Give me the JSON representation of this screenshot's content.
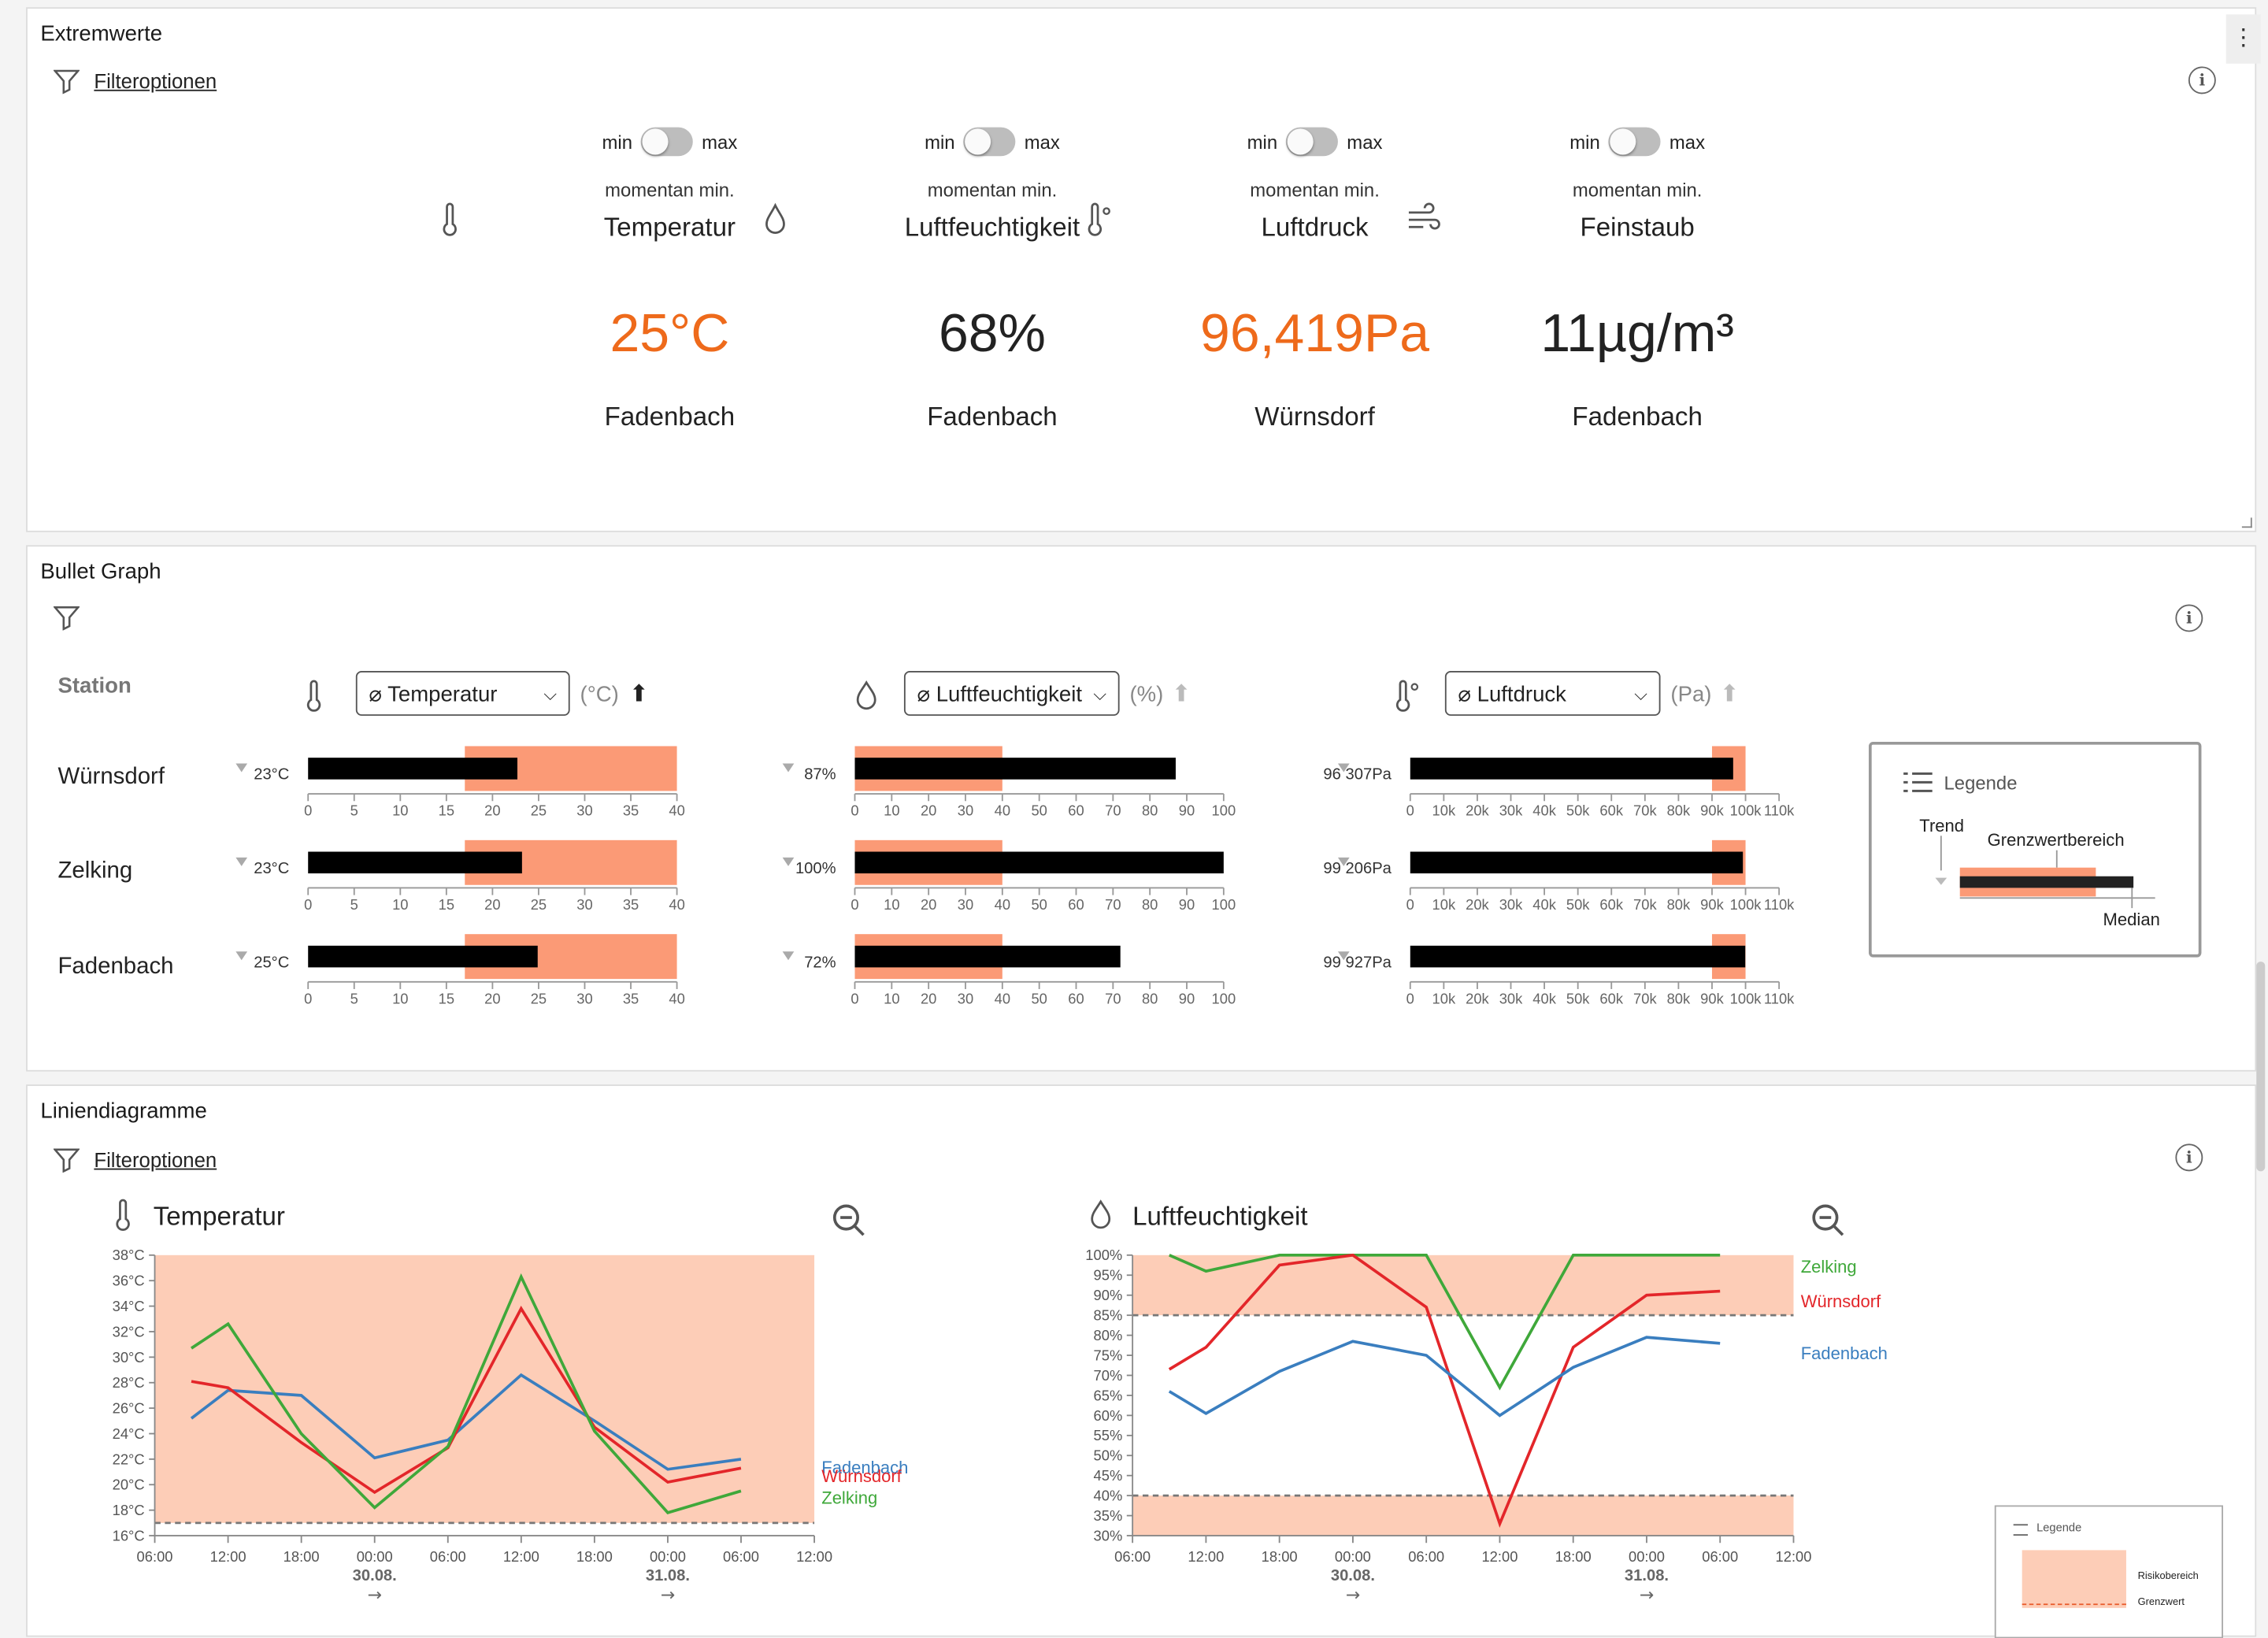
{
  "extremwerte": {
    "title": "Extremwerte",
    "filter_label": "Filteroptionen",
    "toggle_min": "min",
    "toggle_max": "max",
    "momentan": "momentan min.",
    "cards": [
      {
        "metric": "Temperatur",
        "value": "25°C",
        "station": "Fadenbach",
        "icon": "thermometer-icon",
        "highlight": true
      },
      {
        "metric": "Luftfeuchtigkeit",
        "value": "68%",
        "station": "Fadenbach",
        "icon": "droplet-icon",
        "highlight": false
      },
      {
        "metric": "Luftdruck",
        "value": "96,419Pa",
        "station": "Würnsdorf",
        "icon": "pressure-thermometer-icon",
        "highlight": true
      },
      {
        "metric": "Feinstaub",
        "value": "11µg/m³",
        "station": "Fadenbach",
        "icon": "wind-icon",
        "highlight": false
      }
    ]
  },
  "bullet": {
    "title": "Bullet Graph",
    "station_header": "Station",
    "selects": [
      {
        "label": "⌀ Temperatur",
        "unit": "(°C)"
      },
      {
        "label": "⌀ Luftfeuchtigkeit",
        "unit": "(%)"
      },
      {
        "label": "⌀ Luftdruck",
        "unit": "(Pa)"
      }
    ],
    "stations": [
      "Würnsdorf",
      "Zelking",
      "Fadenbach"
    ],
    "graphs": [
      {
        "ticks": [
          "0",
          "5",
          "10",
          "15",
          "20",
          "25",
          "30",
          "35",
          "40"
        ],
        "min": 0,
        "max": 40,
        "range": [
          17,
          40
        ],
        "labels": [
          "23°C",
          "23°C",
          "25°C"
        ],
        "values": [
          22.7,
          23.2,
          24.9
        ]
      },
      {
        "ticks": [
          "0",
          "10",
          "20",
          "30",
          "40",
          "50",
          "60",
          "70",
          "80",
          "90",
          "100"
        ],
        "min": 0,
        "max": 100,
        "range": [
          0,
          40
        ],
        "labels": [
          "87%",
          "100%",
          "72%"
        ],
        "values": [
          87,
          100,
          72
        ]
      },
      {
        "ticks": [
          "0",
          "10k",
          "20k",
          "30k",
          "40k",
          "50k",
          "60k",
          "70k",
          "80k",
          "90k",
          "100k",
          "110k"
        ],
        "min": 0,
        "max": 110000,
        "range": [
          90000,
          100000
        ],
        "labels": [
          "96 307Pa",
          "99 206Pa",
          "99 927Pa"
        ],
        "values": [
          96307,
          99206,
          99927
        ]
      }
    ],
    "legend": {
      "title": "Legende",
      "trend": "Trend",
      "range": "Grenzwertbereich",
      "median": "Median"
    }
  },
  "linien": {
    "title": "Liniendiagramme",
    "filter_label": "Filteroptionen"
  },
  "chart_data": [
    {
      "type": "line",
      "title": "Temperatur",
      "x": [
        "30.08. 09:00",
        "30.08. 12:00",
        "30.08. 18:00",
        "31.08. 00:00",
        "31.08. 06:00",
        "31.08. 12:00",
        "31.08. 18:00",
        "01.09. 00:00",
        "01.09. 06:00"
      ],
      "x_ticks": [
        "06:00",
        "12:00",
        "18:00",
        "00:00",
        "06:00",
        "12:00",
        "18:00",
        "00:00",
        "06:00",
        "12:00"
      ],
      "dates": [
        "30.08.",
        "31.08."
      ],
      "y_ticks": [
        "16°C",
        "18°C",
        "20°C",
        "22°C",
        "24°C",
        "26°C",
        "28°C",
        "30°C",
        "32°C",
        "34°C",
        "36°C",
        "38°C"
      ],
      "ylim": [
        16,
        38
      ],
      "threshold": 17,
      "risk_band": [
        17,
        38
      ],
      "series": [
        {
          "name": "Fadenbach",
          "color": "#3a7ebf",
          "values": [
            25.2,
            27.4,
            27.0,
            22.1,
            23.5,
            28.6,
            25.0,
            21.2,
            22.0
          ]
        },
        {
          "name": "Würnsdorf",
          "color": "#e3262a",
          "values": [
            28.1,
            27.6,
            23.3,
            19.4,
            22.9,
            33.8,
            24.5,
            20.2,
            21.3
          ]
        },
        {
          "name": "Zelking",
          "color": "#3fa83a",
          "values": [
            30.7,
            32.6,
            24.0,
            18.2,
            23.0,
            36.3,
            24.2,
            17.8,
            19.5
          ]
        }
      ]
    },
    {
      "type": "line",
      "title": "Luftfeuchtigkeit",
      "x": [
        "30.08. 09:00",
        "30.08. 12:00",
        "30.08. 18:00",
        "31.08. 00:00",
        "31.08. 06:00",
        "31.08. 12:00",
        "31.08. 18:00",
        "01.09. 00:00",
        "01.09. 06:00"
      ],
      "x_ticks": [
        "06:00",
        "12:00",
        "18:00",
        "00:00",
        "06:00",
        "12:00",
        "18:00",
        "00:00",
        "06:00",
        "12:00"
      ],
      "dates": [
        "30.08.",
        "31.08."
      ],
      "y_ticks": [
        "30%",
        "35%",
        "40%",
        "45%",
        "50%",
        "55%",
        "60%",
        "65%",
        "70%",
        "75%",
        "80%",
        "85%",
        "90%",
        "95%",
        "100%"
      ],
      "ylim": [
        30,
        100
      ],
      "thresholds": [
        85,
        40
      ],
      "risk_bands": [
        [
          85,
          100
        ],
        [
          30,
          40
        ]
      ],
      "series": [
        {
          "name": "Zelking",
          "color": "#3fa83a",
          "values": [
            100,
            96,
            100,
            100,
            100,
            67,
            100,
            100,
            100
          ]
        },
        {
          "name": "Würnsdorf",
          "color": "#e3262a",
          "values": [
            71.5,
            77,
            97.5,
            100,
            87,
            33,
            77,
            90,
            91
          ]
        },
        {
          "name": "Fadenbach",
          "color": "#3a7ebf",
          "values": [
            66,
            60.5,
            71,
            78.5,
            75,
            60,
            72,
            79.5,
            78
          ]
        }
      ]
    }
  ],
  "mini_legend": {
    "title": "Legende",
    "risk": "Risikobereich",
    "limit": "Grenzwert"
  }
}
